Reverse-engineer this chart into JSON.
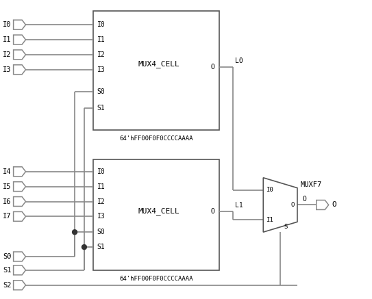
{
  "bg_color": "#ffffff",
  "line_color": "#888888",
  "text_color": "#000000",
  "box_edge_color": "#555555",
  "top_inputs": [
    "I0",
    "I1",
    "I2",
    "I3"
  ],
  "bot_inputs": [
    "I4",
    "I5",
    "I6",
    "I7"
  ],
  "sel_inputs": [
    "S0",
    "S1",
    "S2"
  ],
  "mux_label": "MUX4_CELL",
  "mux_init": "64'hFF00F0F0CCCCAAAA",
  "muxf7_label": "MUXF7",
  "output_label": "O",
  "l0_label": "L0",
  "l1_label": "L1",
  "pin_labels_i": [
    "I0",
    "I1",
    "I2",
    "I3"
  ],
  "pin_labels_s": [
    "S0",
    "S1"
  ]
}
